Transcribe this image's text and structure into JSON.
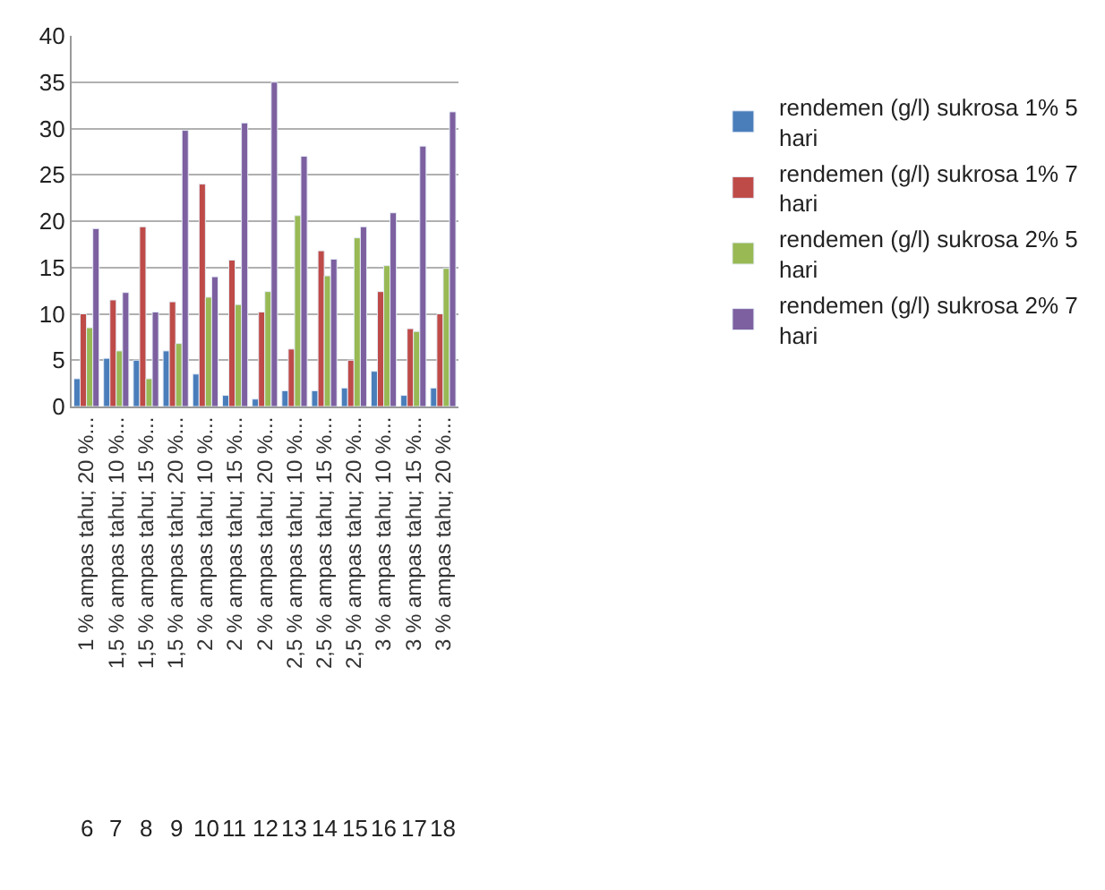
{
  "chart_data": {
    "type": "bar",
    "categories": [
      "1 % ampas tahu; 20 %...",
      "1,5 % ampas tahu; 10 %...",
      "1,5 % ampas tahu; 15 %...",
      "1,5 % ampas tahu; 20 %...",
      "2 % ampas tahu; 10 %...",
      "2 % ampas tahu; 15 %...",
      "2 % ampas tahu; 20 %...",
      "2,5 % ampas tahu; 10 %...",
      "2,5 % ampas tahu; 15 %...",
      "2,5 % ampas tahu; 20 %...",
      "3 % ampas tahu; 10 %...",
      "3 % ampas tahu; 15 %...",
      "3 % ampas tahu; 20 %..."
    ],
    "annotations": [
      "6",
      "7",
      "8",
      "9",
      "10",
      "11",
      "12",
      "13",
      "14",
      "15",
      "16",
      "17",
      "18"
    ],
    "series": [
      {
        "name": "rendemen (g/l) sukrosa 1% 5 hari",
        "color": "#4a7ebb",
        "values": [
          3,
          5.2,
          5,
          6,
          3.5,
          1.2,
          0.8,
          1.7,
          1.7,
          2,
          3.8,
          1.2,
          2
        ]
      },
      {
        "name": "rendemen (g/l) sukrosa 1% 7 hari",
        "color": "#be4b48",
        "values": [
          10,
          11.5,
          19.4,
          11.3,
          24,
          15.8,
          10.2,
          6.2,
          16.8,
          5,
          12.4,
          8.4,
          10
        ]
      },
      {
        "name": "rendemen (g/l) sukrosa 2% 5 hari",
        "color": "#98b954",
        "values": [
          8.5,
          6,
          3,
          6.8,
          11.8,
          11,
          12.4,
          20.6,
          14.1,
          18.2,
          15.2,
          8.1,
          14.9
        ]
      },
      {
        "name": "rendemen (g/l) sukrosa 2% 7 hari",
        "color": "#7d60a0",
        "values": [
          19.2,
          12.3,
          10.2,
          29.8,
          14,
          30.6,
          35,
          27,
          15.9,
          19.4,
          20.9,
          28.1,
          31.8
        ]
      }
    ],
    "ylim": [
      0,
      40
    ],
    "yticks": [
      0,
      5,
      10,
      15,
      20,
      25,
      30,
      35,
      40
    ],
    "grid": "y",
    "legend": "right"
  }
}
